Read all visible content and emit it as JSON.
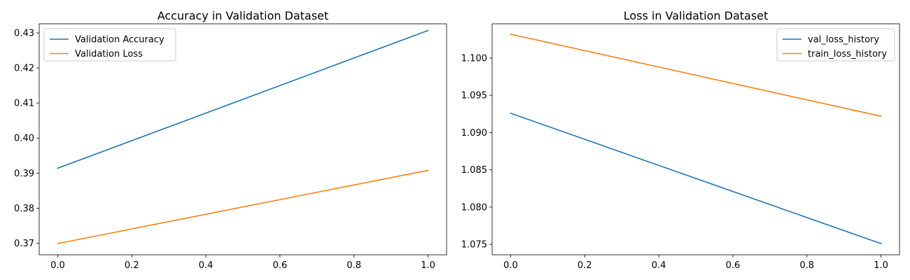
{
  "chart_data": [
    {
      "type": "line",
      "title": "Accuracy in Validation Dataset",
      "xlabel": "",
      "ylabel": "",
      "xlim": [
        -0.05,
        1.05
      ],
      "ylim": [
        0.3667,
        0.4326
      ],
      "xticks": [
        0.0,
        0.2,
        0.4,
        0.6,
        0.8,
        1.0
      ],
      "xtick_labels": [
        "0.0",
        "0.2",
        "0.4",
        "0.6",
        "0.8",
        "1.0"
      ],
      "yticks": [
        0.37,
        0.38,
        0.39,
        0.4,
        0.41,
        0.42,
        0.43
      ],
      "ytick_labels": [
        "0.37",
        "0.38",
        "0.39",
        "0.40",
        "0.41",
        "0.42",
        "0.43"
      ],
      "grid": false,
      "legend": "upper-left",
      "x": [
        0,
        1
      ],
      "series": [
        {
          "name": "Validation Accuracy",
          "values": [
            0.3914,
            0.4307
          ],
          "color": "#1f77b4"
        },
        {
          "name": "Validation Loss",
          "values": [
            0.3699,
            0.3908
          ],
          "color": "#ff7f0e"
        }
      ]
    },
    {
      "type": "line",
      "title": "Loss in Validation Dataset",
      "xlabel": "",
      "ylabel": "",
      "xlim": [
        -0.05,
        1.05
      ],
      "ylim": [
        1.0736,
        1.1046
      ],
      "xticks": [
        0.0,
        0.2,
        0.4,
        0.6,
        0.8,
        1.0
      ],
      "xtick_labels": [
        "0.0",
        "0.2",
        "0.4",
        "0.6",
        "0.8",
        "1.0"
      ],
      "yticks": [
        1.075,
        1.08,
        1.085,
        1.09,
        1.095,
        1.1
      ],
      "ytick_labels": [
        "1.075",
        "1.080",
        "1.085",
        "1.090",
        "1.095",
        "1.100"
      ],
      "grid": false,
      "legend": "upper-right",
      "x": [
        0,
        1
      ],
      "series": [
        {
          "name": "val_loss_history",
          "values": [
            1.0926,
            1.0751
          ],
          "color": "#1f77b4"
        },
        {
          "name": "train_loss_history",
          "values": [
            1.1032,
            1.0922
          ],
          "color": "#ff7f0e"
        }
      ]
    }
  ]
}
